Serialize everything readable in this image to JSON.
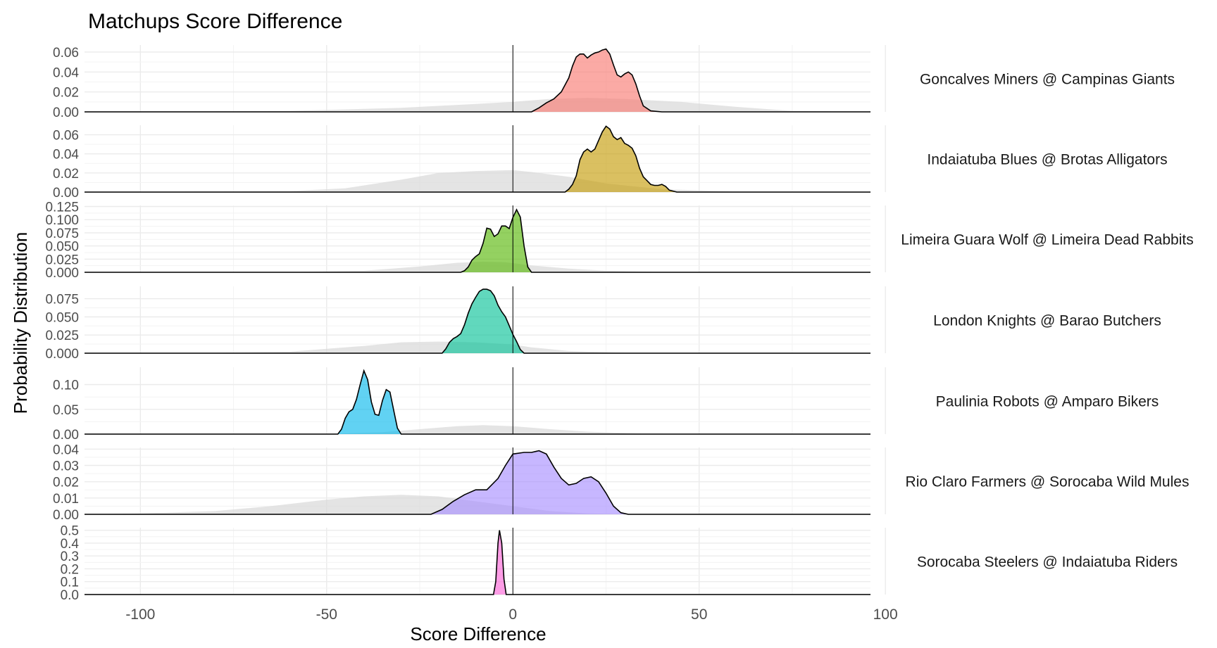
{
  "chart_data": {
    "type": "area",
    "title": "Matchups Score Difference",
    "xlabel": "Score Difference",
    "ylabel": "Probability Distribution",
    "xlim": [
      -115,
      96
    ],
    "x_ticks": [
      -100,
      -50,
      0,
      50,
      100
    ],
    "x_tick_labels": [
      "-100",
      "-50",
      "0",
      "50",
      "100"
    ],
    "vline_x": 0,
    "grid": true,
    "legend": "none",
    "background_series": "all matchups (grey)",
    "colors": {
      "background_density": "#d9d9d9",
      "grid": "#ebebeb",
      "outline": "#000000"
    },
    "panels": [
      {
        "label": "Goncalves Miners @ Campinas Giants",
        "color": "#F8766D",
        "ylim": [
          0,
          0.067
        ],
        "y_ticks": [
          0,
          0.02,
          0.04,
          0.06
        ],
        "y_tick_labels": [
          "0.00",
          "0.02",
          "0.04",
          "0.06"
        ],
        "density": {
          "x": [
            -115,
            5,
            7,
            9,
            11,
            13,
            15,
            16,
            17,
            18,
            19,
            20,
            21,
            22,
            23,
            24,
            25,
            26,
            27,
            28,
            29,
            30,
            31,
            32,
            33,
            34,
            35,
            37,
            40,
            96
          ],
          "y": [
            0,
            0,
            0.004,
            0.009,
            0.013,
            0.02,
            0.034,
            0.046,
            0.055,
            0.058,
            0.058,
            0.054,
            0.057,
            0.059,
            0.06,
            0.062,
            0.063,
            0.058,
            0.047,
            0.037,
            0.035,
            0.038,
            0.04,
            0.037,
            0.028,
            0.016,
            0.006,
            0.001,
            0,
            0
          ]
        },
        "background": {
          "x": [
            -115,
            -90,
            -60,
            -30,
            -10,
            0,
            10,
            20,
            30,
            45,
            60,
            75,
            96
          ],
          "y": [
            0,
            0.0003,
            0.001,
            0.004,
            0.008,
            0.01,
            0.013,
            0.014,
            0.013,
            0.01,
            0.005,
            0.001,
            0
          ]
        }
      },
      {
        "label": "Indaiatuba Blues @ Brotas Alligators",
        "color": "#C49A00",
        "ylim": [
          0,
          0.07
        ],
        "y_ticks": [
          0,
          0.02,
          0.04,
          0.06
        ],
        "y_tick_labels": [
          "0.00",
          "0.02",
          "0.04",
          "0.06"
        ],
        "density": {
          "x": [
            -115,
            14,
            15,
            16,
            17,
            18,
            19,
            20,
            21,
            22,
            23,
            24,
            25,
            26,
            27,
            28,
            29,
            30,
            31,
            32,
            33,
            34,
            35,
            36,
            37,
            38,
            39,
            40,
            41,
            42,
            43,
            44,
            96
          ],
          "y": [
            0,
            0,
            0.003,
            0.008,
            0.017,
            0.034,
            0.042,
            0.045,
            0.042,
            0.045,
            0.054,
            0.063,
            0.069,
            0.066,
            0.058,
            0.055,
            0.057,
            0.051,
            0.049,
            0.046,
            0.038,
            0.025,
            0.016,
            0.012,
            0.008,
            0.007,
            0.007,
            0.008,
            0.006,
            0.002,
            0.001,
            0,
            0
          ]
        },
        "background": {
          "x": [
            -115,
            -60,
            -45,
            -30,
            -20,
            -10,
            0,
            5,
            15,
            25,
            40,
            60,
            96
          ],
          "y": [
            0,
            0.001,
            0.004,
            0.013,
            0.02,
            0.022,
            0.023,
            0.021,
            0.016,
            0.009,
            0.003,
            0.0005,
            0
          ]
        }
      },
      {
        "label": "Limeira Guara Wolf @ Limeira Dead Rabbits",
        "color": "#53B400",
        "ylim": [
          0,
          0.127
        ],
        "y_ticks": [
          0,
          0.025,
          0.05,
          0.075,
          0.1,
          0.125
        ],
        "y_tick_labels": [
          "0.000",
          "0.025",
          "0.050",
          "0.075",
          "0.100",
          "0.125"
        ],
        "density": {
          "x": [
            -115,
            -14,
            -13,
            -12,
            -11,
            -10,
            -9,
            -8,
            -7,
            -6,
            -5,
            -4,
            -3,
            -2,
            -1,
            0,
            1,
            2,
            3,
            4,
            5,
            96
          ],
          "y": [
            0,
            0,
            0.003,
            0.01,
            0.023,
            0.03,
            0.035,
            0.055,
            0.084,
            0.082,
            0.068,
            0.073,
            0.088,
            0.088,
            0.083,
            0.104,
            0.119,
            0.105,
            0.05,
            0.01,
            0,
            0
          ]
        },
        "background": {
          "x": [
            -115,
            -60,
            -40,
            -25,
            -15,
            -8,
            -2,
            5,
            15,
            25,
            40,
            96
          ],
          "y": [
            0,
            0.0005,
            0.003,
            0.011,
            0.018,
            0.02,
            0.019,
            0.013,
            0.007,
            0.003,
            0.0005,
            0
          ]
        }
      },
      {
        "label": "London Knights @ Barao Butchers",
        "color": "#00C094",
        "ylim": [
          0,
          0.092
        ],
        "y_ticks": [
          0,
          0.025,
          0.05,
          0.075
        ],
        "y_tick_labels": [
          "0.000",
          "0.025",
          "0.050",
          "0.075"
        ],
        "density": {
          "x": [
            -115,
            -19,
            -18,
            -17,
            -16,
            -15,
            -14,
            -13,
            -12,
            -11,
            -10,
            -9,
            -8,
            -7,
            -6,
            -5,
            -4,
            -3,
            -2,
            -1,
            0,
            1,
            2,
            3,
            96
          ],
          "y": [
            0,
            0,
            0.006,
            0.015,
            0.02,
            0.023,
            0.027,
            0.039,
            0.055,
            0.068,
            0.077,
            0.085,
            0.088,
            0.088,
            0.086,
            0.079,
            0.066,
            0.057,
            0.05,
            0.038,
            0.026,
            0.016,
            0.005,
            0,
            0
          ]
        },
        "background": {
          "x": [
            -115,
            -80,
            -60,
            -40,
            -30,
            -20,
            -10,
            0,
            5,
            15,
            30,
            96
          ],
          "y": [
            0,
            0.0005,
            0.002,
            0.01,
            0.015,
            0.016,
            0.015,
            0.012,
            0.008,
            0.003,
            0.0005,
            0
          ]
        }
      },
      {
        "label": "Paulinia Robots @ Amparo Bikers",
        "color": "#00B6EB",
        "ylim": [
          0,
          0.135
        ],
        "y_ticks": [
          0,
          0.05,
          0.1
        ],
        "y_tick_labels": [
          "0.00",
          "0.05",
          "0.10"
        ],
        "density": {
          "x": [
            -115,
            -47,
            -46,
            -45,
            -44,
            -43,
            -42,
            -41,
            -40,
            -39,
            -38,
            -37,
            -36,
            -35,
            -34,
            -33,
            -32,
            -31,
            -30,
            96
          ],
          "y": [
            0,
            0,
            0.01,
            0.032,
            0.045,
            0.05,
            0.07,
            0.1,
            0.128,
            0.11,
            0.065,
            0.04,
            0.038,
            0.068,
            0.09,
            0.085,
            0.048,
            0.012,
            0,
            0
          ]
        },
        "background": {
          "x": [
            -115,
            -50,
            -35,
            -25,
            -15,
            -8,
            0,
            10,
            20,
            35,
            50,
            96
          ],
          "y": [
            0,
            0.0005,
            0.004,
            0.01,
            0.016,
            0.018,
            0.016,
            0.01,
            0.005,
            0.001,
            0.0002,
            0
          ]
        }
      },
      {
        "label": "Rio Claro Farmers @ Sorocaba Wild Mules",
        "color": "#A58AFF",
        "ylim": [
          0,
          0.041
        ],
        "y_ticks": [
          0,
          0.01,
          0.02,
          0.03,
          0.04
        ],
        "y_tick_labels": [
          "0.00",
          "0.01",
          "0.02",
          "0.03",
          "0.04"
        ],
        "density": {
          "x": [
            -115,
            -22,
            -19,
            -16,
            -13,
            -10,
            -7,
            -4,
            -2,
            0,
            3,
            5,
            7,
            9,
            11,
            13,
            15,
            17,
            19,
            21,
            23,
            25,
            27,
            29,
            31,
            96
          ],
          "y": [
            0,
            0,
            0.003,
            0.008,
            0.012,
            0.015,
            0.015,
            0.022,
            0.03,
            0.037,
            0.038,
            0.038,
            0.039,
            0.037,
            0.029,
            0.022,
            0.018,
            0.019,
            0.022,
            0.023,
            0.02,
            0.013,
            0.005,
            0.001,
            0,
            0
          ]
        },
        "background": {
          "x": [
            -115,
            -100,
            -80,
            -65,
            -50,
            -40,
            -30,
            -20,
            -10,
            0,
            10,
            20,
            30,
            96
          ],
          "y": [
            0,
            0.0005,
            0.002,
            0.005,
            0.009,
            0.011,
            0.012,
            0.011,
            0.008,
            0.005,
            0.002,
            0.0005,
            0,
            0
          ]
        }
      },
      {
        "label": "Sorocaba Steelers @ Indaiatuba Riders",
        "color": "#FB61D7",
        "ylim": [
          0,
          0.52
        ],
        "y_ticks": [
          0,
          0.1,
          0.2,
          0.3,
          0.4,
          0.5
        ],
        "y_tick_labels": [
          "0.0",
          "0.1",
          "0.2",
          "0.3",
          "0.4",
          "0.5"
        ],
        "density": {
          "x": [
            -115,
            -5.2,
            -4.6,
            -4.0,
            -3.6,
            -3.0,
            -2.4,
            -1.8,
            96
          ],
          "y": [
            0,
            0,
            0.1,
            0.4,
            0.5,
            0.4,
            0.12,
            0,
            0
          ]
        },
        "background": {
          "x": [
            -115,
            -15,
            -5,
            5,
            15,
            96
          ],
          "y": [
            0,
            0,
            0.001,
            0.001,
            0,
            0
          ]
        }
      }
    ]
  }
}
